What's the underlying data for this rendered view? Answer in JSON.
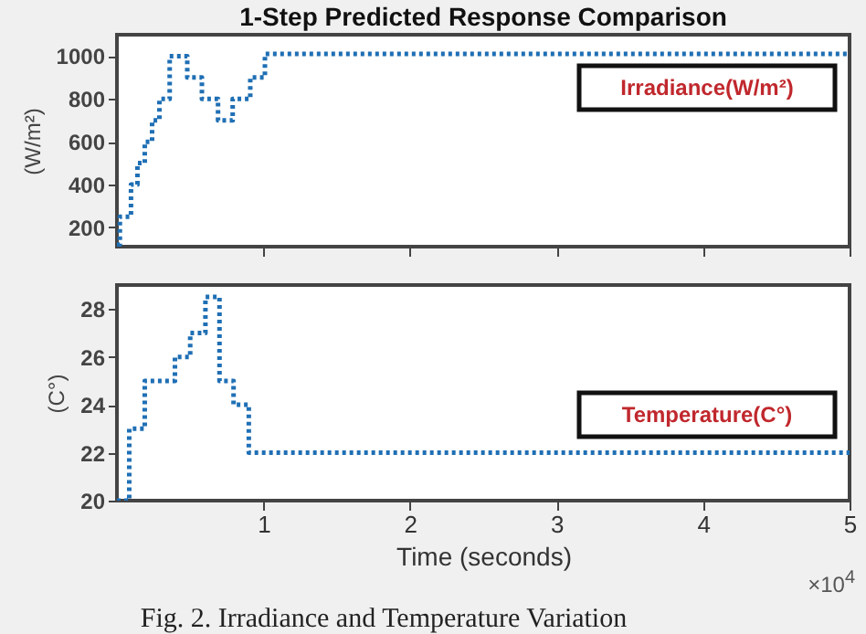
{
  "chart_data": [
    {
      "type": "step",
      "title": "1-Step Predicted Response Comparison",
      "ylabel": "(W/m²)",
      "x": [
        0,
        0.02,
        0.096,
        0.14,
        0.19,
        0.24,
        0.29,
        0.36,
        0.48,
        0.58,
        0.69,
        0.79,
        0.91,
        1.01,
        5
      ],
      "series": [
        {
          "color": "#1f6fb4",
          "values": [
            120,
            250,
            400,
            500,
            600,
            700,
            800,
            1000,
            900,
            800,
            700,
            800,
            900,
            1010,
            1010
          ]
        }
      ],
      "annotations": [
        "Irradiance(W/m²)"
      ],
      "xlim": [
        0,
        5
      ],
      "xticks": [
        1,
        2,
        3,
        4,
        5
      ],
      "ylim": [
        110,
        1100
      ],
      "yticks": [
        200,
        400,
        600,
        800,
        1000
      ],
      "tick_labels": "y",
      "line_style": "dotted"
    },
    {
      "type": "step",
      "xlabel": "Time (seconds)",
      "ylabel": "(C°)",
      "x": [
        0,
        0.084,
        0.19,
        0.396,
        0.5,
        0.604,
        0.7,
        0.796,
        0.9,
        5
      ],
      "series": [
        {
          "color": "#1f6fb4",
          "values": [
            20,
            23,
            25,
            26,
            27,
            28.5,
            25,
            24,
            22,
            22
          ]
        }
      ],
      "annotations": [
        "Temperature(C°)",
        "×10$^{4}$",
        "Fig. 2. Irradiance and Temperature Variation"
      ],
      "xlim": [
        0,
        5
      ],
      "xticks": [
        1,
        2,
        3,
        4,
        5
      ],
      "ylim": [
        20,
        29
      ],
      "yticks": [
        20,
        22,
        24,
        26,
        28
      ],
      "line_style": "dotted"
    }
  ]
}
